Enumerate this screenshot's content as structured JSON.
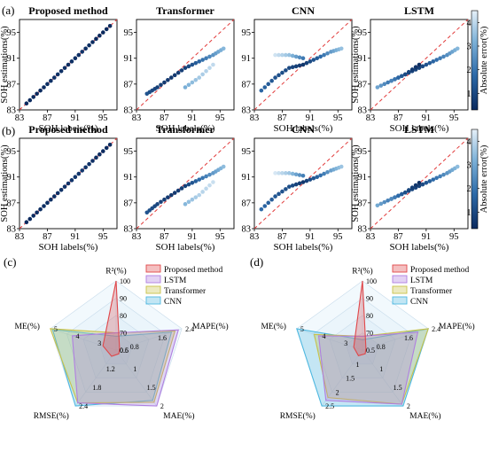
{
  "panel_labels": [
    "(a)",
    "(b)",
    "(c)",
    "(d)"
  ],
  "colorbar": {
    "label": "Absolute error(%)",
    "ticks": [
      "1",
      "2",
      "3",
      "4"
    ],
    "range": [
      0.3,
      4.5
    ],
    "colors": [
      "#0b2a5e",
      "#2d6aa8",
      "#7fb3d9",
      "#e6f0f8"
    ]
  },
  "scatter_axes": {
    "xlabel": "SOH labels(%)",
    "ylabel": "SOH estimations(%)",
    "ticks": [
      "83",
      "87",
      "91",
      "95"
    ]
  },
  "radar_common": {
    "axes": [
      "R²(%)",
      "MAPE(%)",
      "MAE(%)",
      "RMSE(%)",
      "ME(%)"
    ],
    "legend": [
      "Proposed method",
      "LSTM",
      "Transformer",
      "CNN"
    ],
    "colors": {
      "Proposed method": "#e0474a",
      "LSTM": "#b07fe0",
      "Transformer": "#c9c24a",
      "CNN": "#4fb8e0"
    }
  },
  "chart_data": [
    {
      "type": "scatter",
      "panel": "(a)",
      "title": "Proposed method",
      "xlim": [
        83,
        97
      ],
      "ylim": [
        83,
        97
      ],
      "series": [
        {
          "x": [
            84,
            86,
            88,
            90,
            92,
            94,
            96
          ],
          "y": [
            84,
            86,
            88,
            90,
            92,
            94,
            96
          ],
          "error": [
            0.3,
            0.3,
            0.5,
            0.4,
            0.5,
            0.3,
            0.3
          ]
        }
      ]
    },
    {
      "type": "scatter",
      "panel": "(a)",
      "title": "Transformer",
      "xlim": [
        83,
        97
      ],
      "ylim": [
        83,
        97
      ],
      "series": [
        {
          "x": [
            84.5,
            86,
            88,
            90,
            92,
            94,
            95.5,
            90,
            92,
            94
          ],
          "y": [
            85.5,
            86.5,
            88,
            89.5,
            90.5,
            91.5,
            92.5,
            86.5,
            88,
            90
          ],
          "error": [
            1.2,
            0.8,
            0.6,
            0.8,
            1.6,
            2.5,
            3.2,
            3.0,
            3.6,
            4.0
          ]
        }
      ]
    },
    {
      "type": "scatter",
      "panel": "(a)",
      "title": "CNN",
      "xlim": [
        83,
        97
      ],
      "ylim": [
        83,
        97
      ],
      "series": [
        {
          "x": [
            84,
            86,
            88,
            90,
            92,
            94,
            95.5,
            86,
            88,
            90
          ],
          "y": [
            86,
            88,
            89.5,
            90,
            91,
            92,
            92.5,
            91.5,
            91.5,
            91
          ],
          "error": [
            1.6,
            1.2,
            1.0,
            0.6,
            1.4,
            2.6,
            3.4,
            4.2,
            3.4,
            2.0
          ]
        }
      ]
    },
    {
      "type": "scatter",
      "panel": "(a)",
      "title": "LSTM",
      "xlim": [
        83,
        97
      ],
      "ylim": [
        83,
        97
      ],
      "series": [
        {
          "x": [
            84,
            86,
            88,
            90,
            92,
            94,
            95.5,
            86,
            88,
            90
          ],
          "y": [
            86.5,
            87.5,
            88.5,
            89.5,
            90.5,
            91.5,
            92.5,
            87.5,
            88.5,
            90
          ],
          "error": [
            2.8,
            1.8,
            1.0,
            0.8,
            1.6,
            2.4,
            3.2,
            2.2,
            1.0,
            0.4
          ]
        }
      ]
    },
    {
      "type": "scatter",
      "panel": "(b)",
      "title": "Proposed method",
      "xlim": [
        83,
        97
      ],
      "ylim": [
        83,
        97
      ],
      "series": [
        {
          "x": [
            84,
            86,
            88,
            90,
            92,
            94,
            96
          ],
          "y": [
            84,
            86,
            88,
            90,
            92,
            94,
            96
          ],
          "error": [
            0.3,
            0.4,
            0.4,
            0.5,
            0.6,
            0.4,
            0.3
          ]
        }
      ]
    },
    {
      "type": "scatter",
      "panel": "(b)",
      "title": "Transformer",
      "xlim": [
        83,
        97
      ],
      "ylim": [
        83,
        97
      ],
      "series": [
        {
          "x": [
            84.5,
            86,
            88,
            90,
            92,
            94,
            95.5,
            90,
            92,
            94
          ],
          "y": [
            85.5,
            86.8,
            88.2,
            89.6,
            90.6,
            91.6,
            92.6,
            86.8,
            88.2,
            90.2
          ],
          "error": [
            1.2,
            0.9,
            0.6,
            0.8,
            1.7,
            2.6,
            3.3,
            3.2,
            3.8,
            4.1
          ]
        }
      ]
    },
    {
      "type": "scatter",
      "panel": "(b)",
      "title": "CNN",
      "xlim": [
        83,
        97
      ],
      "ylim": [
        83,
        97
      ],
      "series": [
        {
          "x": [
            84,
            86,
            88,
            90,
            92,
            94,
            95.5,
            86,
            88,
            90
          ],
          "y": [
            86,
            88,
            89.5,
            90.2,
            91,
            92,
            92.6,
            91.6,
            91.6,
            91.2
          ],
          "error": [
            1.7,
            1.3,
            1.1,
            0.6,
            1.5,
            2.7,
            3.5,
            4.3,
            3.5,
            2.1
          ]
        }
      ]
    },
    {
      "type": "scatter",
      "panel": "(b)",
      "title": "LSTM",
      "xlim": [
        83,
        97
      ],
      "ylim": [
        83,
        97
      ],
      "series": [
        {
          "x": [
            84,
            86,
            88,
            90,
            92,
            94,
            95.5,
            86,
            88,
            90
          ],
          "y": [
            86.6,
            87.6,
            88.6,
            89.6,
            90.6,
            91.6,
            92.6,
            87.6,
            88.6,
            90.1
          ],
          "error": [
            2.9,
            1.9,
            1.1,
            0.8,
            1.7,
            2.5,
            3.3,
            2.3,
            1.1,
            0.4
          ]
        }
      ]
    },
    {
      "type": "radar",
      "panel": "(c)",
      "axes": [
        {
          "name": "R²(%)",
          "min": 60,
          "max": 100,
          "ticks": [
            70,
            80,
            90,
            100
          ]
        },
        {
          "name": "MAPE(%)",
          "min": 0.5,
          "max": 2.4,
          "ticks": [
            0.8,
            1.6,
            2.4
          ]
        },
        {
          "name": "MAE(%)",
          "min": 0.5,
          "max": 2.0,
          "ticks": [
            0.5,
            1.0,
            1.5,
            2.0
          ]
        },
        {
          "name": "RMSE(%)",
          "min": 0.6,
          "max": 2.4,
          "ticks": [
            0.6,
            1.2,
            1.8,
            2.4
          ]
        },
        {
          "name": "ME(%)",
          "min": 2,
          "max": 5,
          "ticks": [
            3,
            4,
            5
          ]
        }
      ],
      "series": [
        {
          "name": "Proposed method",
          "values": [
            100,
            0.6,
            0.6,
            0.8,
            2.6
          ]
        },
        {
          "name": "LSTM",
          "values": [
            70,
            2.3,
            2.0,
            2.3,
            4.0
          ]
        },
        {
          "name": "Transformer",
          "values": [
            70,
            2.2,
            1.9,
            2.3,
            5.0
          ]
        },
        {
          "name": "CNN",
          "values": [
            68,
            2.1,
            1.85,
            2.4,
            4.9
          ]
        }
      ]
    },
    {
      "type": "radar",
      "panel": "(d)",
      "axes": [
        {
          "name": "R²(%)",
          "min": 60,
          "max": 100,
          "ticks": [
            70,
            80,
            90,
            100
          ]
        },
        {
          "name": "MAPE(%)",
          "min": 0.5,
          "max": 2.4,
          "ticks": [
            0.8,
            1.6,
            2.4
          ]
        },
        {
          "name": "MAE(%)",
          "min": 0.5,
          "max": 2.0,
          "ticks": [
            0.5,
            1.0,
            1.5,
            2.0
          ]
        },
        {
          "name": "RMSE(%)",
          "min": 0.5,
          "max": 2.5,
          "ticks": [
            1.0,
            1.5,
            2.0,
            2.5
          ]
        },
        {
          "name": "ME(%)",
          "min": 2,
          "max": 5,
          "ticks": [
            3,
            4,
            5
          ]
        }
      ],
      "series": [
        {
          "name": "Proposed method",
          "values": [
            100,
            0.6,
            0.6,
            0.7,
            2.4
          ]
        },
        {
          "name": "LSTM",
          "values": [
            68,
            2.1,
            1.95,
            2.3,
            4.0
          ]
        },
        {
          "name": "Transformer",
          "values": [
            68,
            2.4,
            1.95,
            2.2,
            4.2
          ]
        },
        {
          "name": "CNN",
          "values": [
            66,
            2.4,
            2.0,
            2.5,
            5.0
          ]
        }
      ]
    }
  ]
}
